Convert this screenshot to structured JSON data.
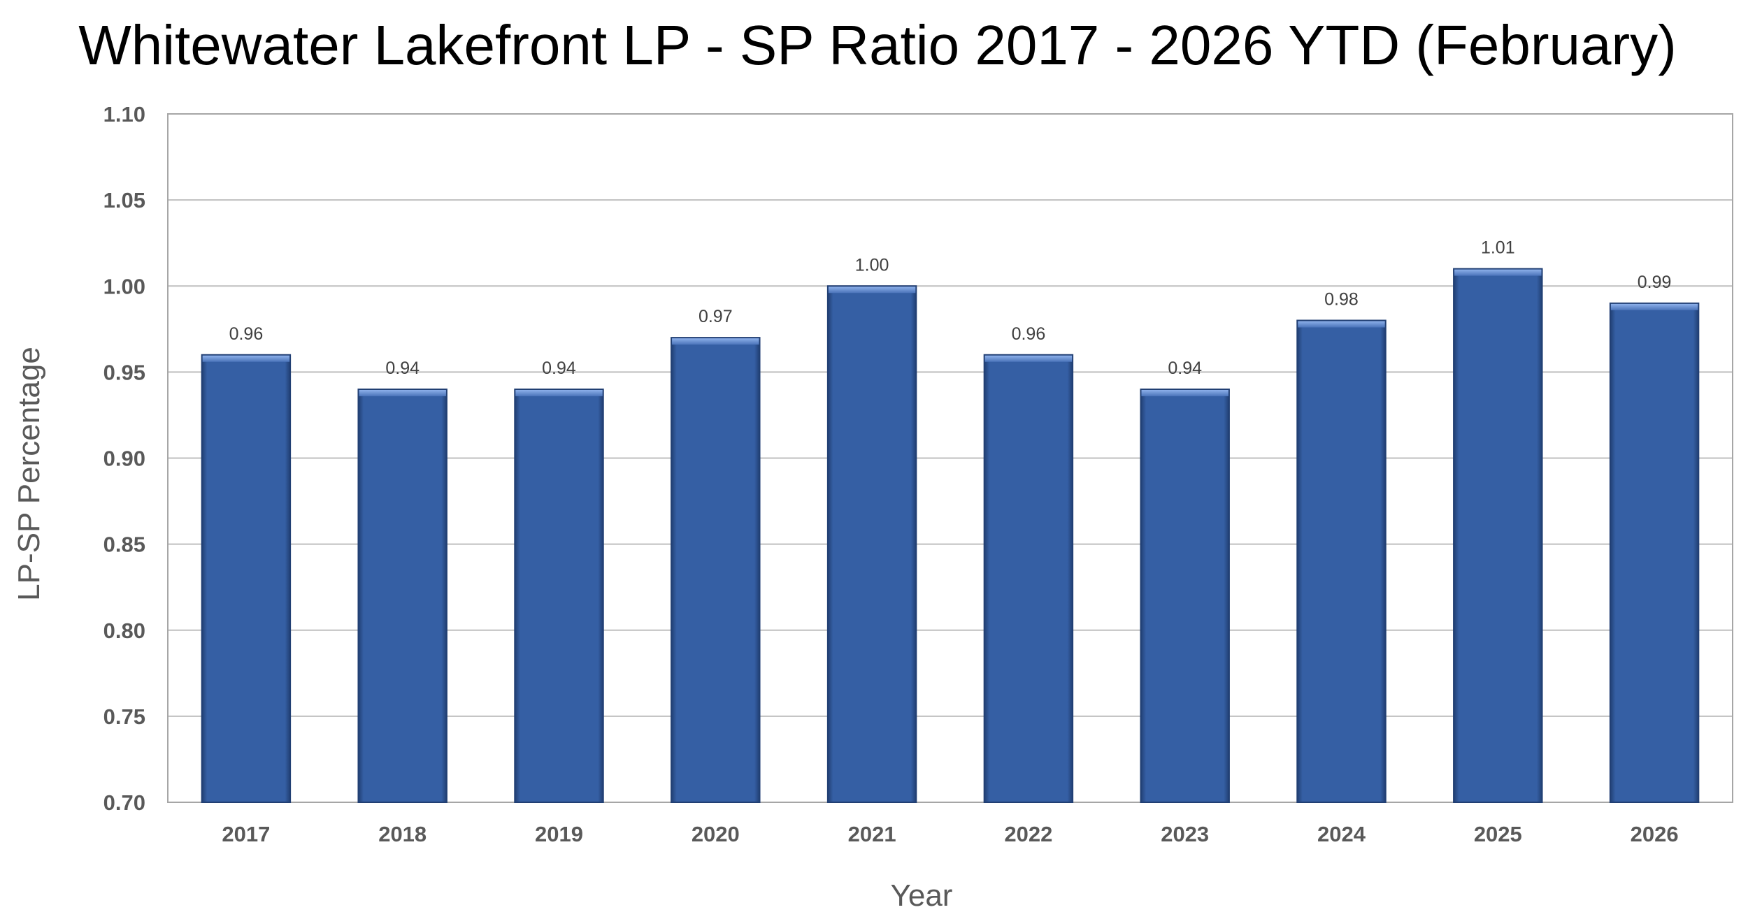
{
  "chart_data": {
    "type": "bar",
    "title": "Whitewater Lakefront  LP - SP Ratio 2017 - 2026 YTD (February)",
    "xlabel": "Year",
    "ylabel": "LP-SP Percentage",
    "categories": [
      "2017",
      "2018",
      "2019",
      "2020",
      "2021",
      "2022",
      "2023",
      "2024",
      "2025",
      "2026"
    ],
    "values": [
      0.96,
      0.94,
      0.94,
      0.97,
      1.0,
      0.96,
      0.94,
      0.98,
      1.01,
      0.99
    ],
    "data_labels": [
      "0.96",
      "0.94",
      "0.94",
      "0.97",
      "1.00",
      "0.96",
      "0.94",
      "0.98",
      "1.01",
      "0.99"
    ],
    "ylim": [
      0.7,
      1.1
    ],
    "yticks": [
      0.7,
      0.75,
      0.8,
      0.85,
      0.9,
      0.95,
      1.0,
      1.05,
      1.1
    ],
    "ytick_labels": [
      "0.70",
      "0.75",
      "0.80",
      "0.85",
      "0.90",
      "0.95",
      "1.00",
      "1.05",
      "1.10"
    ],
    "grid": true,
    "legend": "none",
    "colors": {
      "bar": "#355FA4",
      "bar_dark": "#213F73",
      "bar_top": "#7FA1DC",
      "grid": "#BFBFBF",
      "plot_border": "#A6A6A6"
    }
  }
}
